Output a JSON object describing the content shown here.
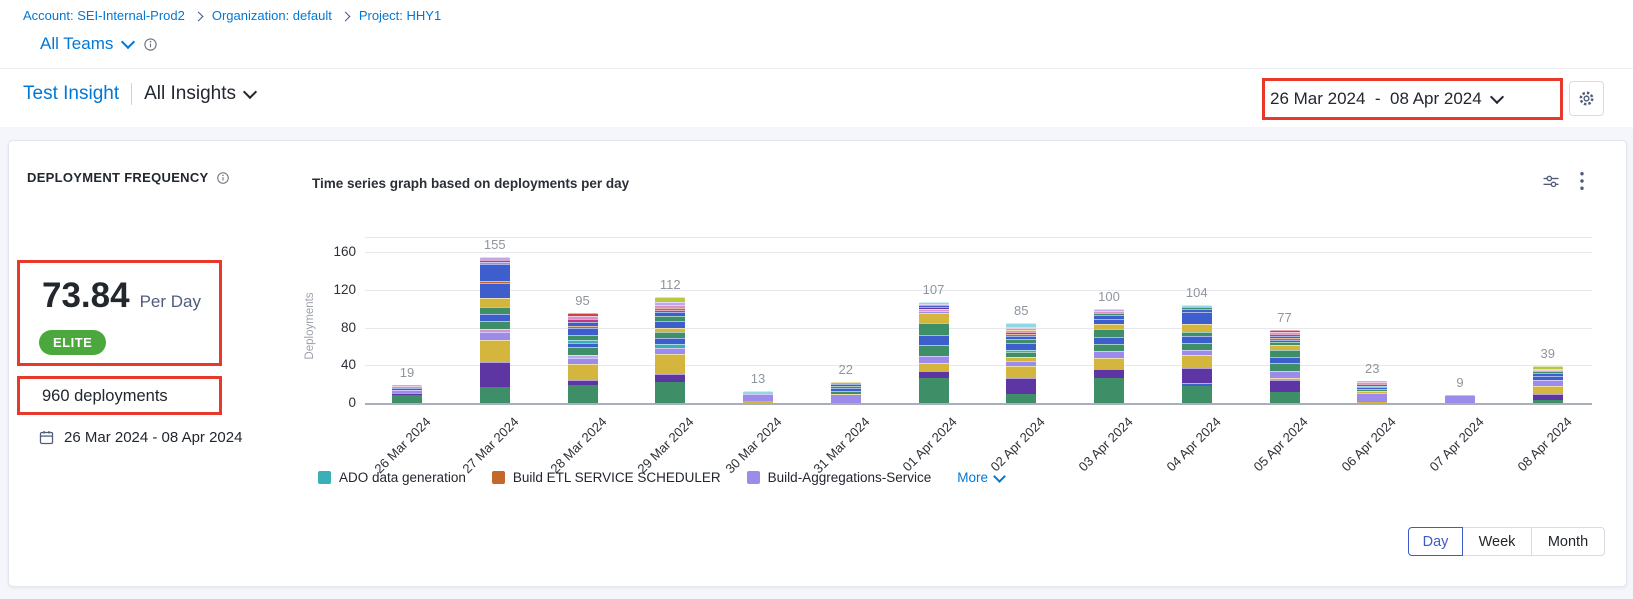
{
  "breadcrumb": {
    "items": [
      "Account: SEI-Internal-Prod2",
      "Organization: default",
      "Project: HHY1"
    ]
  },
  "teams_selector": {
    "label": "All Teams"
  },
  "insight_header": {
    "insight_name": "Test Insight",
    "scope_label": "All Insights"
  },
  "header_date_range": "26 Mar 2024  -  08 Apr 2024",
  "widget": {
    "title": "DEPLOYMENT FREQUENCY",
    "metric_value": "73.84",
    "metric_unit": "Per Day",
    "badge": "ELITE",
    "total_label": "960 deployments",
    "period": "26 Mar 2024 - 08 Apr 2024"
  },
  "colors": {
    "primary_blue": "#0278D5",
    "badge_green": "#4BA83C",
    "annotation_red": "#E8382C",
    "selected_toggle_blue": "#3D5BC9"
  },
  "icons": {
    "settings": "gear-icon",
    "widget_filter": "sliders-icon",
    "widget_menu": "kebab-menu-icon",
    "info": "info-circle-icon",
    "calendar": "calendar-icon"
  },
  "controls": {
    "granularity_options": [
      "Day",
      "Week",
      "Month"
    ],
    "selected_granularity": "Day"
  },
  "chart_data": {
    "type": "bar",
    "stacked": true,
    "title": "Time series graph based on deployments per day",
    "xlabel": "",
    "ylabel": "Deployments",
    "ylim": [
      0,
      176
    ],
    "yticks": [
      0,
      40,
      80,
      120,
      160
    ],
    "grid": true,
    "legend_position": "bottom",
    "categories": [
      "26 Mar 2024",
      "27 Mar 2024",
      "28 Mar 2024",
      "29 Mar 2024",
      "30 Mar 2024",
      "31 Mar 2024",
      "01 Apr 2024",
      "02 Apr 2024",
      "03 Apr 2024",
      "04 Apr 2024",
      "05 Apr 2024",
      "06 Apr 2024",
      "07 Apr 2024",
      "08 Apr 2024"
    ],
    "totals": [
      19,
      155,
      95,
      112,
      13,
      22,
      107,
      85,
      100,
      104,
      77,
      23,
      9,
      39
    ],
    "palette": {
      "green": "#3E8E68",
      "darkpurple": "#5D36A4",
      "gold": "#D4B53E",
      "periwinkle": "#9C8BEA",
      "blue": "#3D5ECC",
      "teal": "#3AAFB5",
      "orange": "#C2682A",
      "crimson": "#C13A7D",
      "pink": "#DA93C9",
      "lavender": "#BEA9E9",
      "lime": "#B8C93F",
      "lightcyan": "#8ED9E4",
      "red": "#CB4442"
    },
    "bars": [
      {
        "category": "26 Mar 2024",
        "total": 19,
        "segments": [
          [
            "green",
            8
          ],
          [
            "darkpurple",
            3
          ],
          [
            "periwinkle",
            3
          ],
          [
            "blue",
            2
          ],
          [
            "pink",
            2
          ],
          [
            "crimson",
            1
          ]
        ]
      },
      {
        "category": "27 Mar 2024",
        "total": 155,
        "segments": [
          [
            "green",
            17
          ],
          [
            "darkpurple",
            26
          ],
          [
            "gold",
            24
          ],
          [
            "periwinkle",
            8
          ],
          [
            "pink",
            3
          ],
          [
            "green",
            9
          ],
          [
            "blue",
            7
          ],
          [
            "green",
            8
          ],
          [
            "gold",
            9
          ],
          [
            "blue",
            16
          ],
          [
            "orange",
            2
          ],
          [
            "blue",
            18
          ],
          [
            "periwinkle",
            2
          ],
          [
            "crimson",
            3
          ],
          [
            "lavender",
            3
          ]
        ]
      },
      {
        "category": "28 Mar 2024",
        "total": 95,
        "segments": [
          [
            "green",
            19
          ],
          [
            "darkpurple",
            5
          ],
          [
            "gold",
            17
          ],
          [
            "periwinkle",
            7
          ],
          [
            "lavender",
            3
          ],
          [
            "green",
            8
          ],
          [
            "blue",
            5
          ],
          [
            "teal",
            3
          ],
          [
            "green",
            5
          ],
          [
            "blue",
            8
          ],
          [
            "orange",
            2
          ],
          [
            "blue",
            4
          ],
          [
            "crimson",
            3
          ],
          [
            "pink",
            3
          ],
          [
            "red",
            3
          ]
        ]
      },
      {
        "category": "29 Mar 2024",
        "total": 112,
        "segments": [
          [
            "green",
            22
          ],
          [
            "darkpurple",
            9
          ],
          [
            "gold",
            21
          ],
          [
            "periwinkle",
            6
          ],
          [
            "teal",
            5
          ],
          [
            "blue",
            6
          ],
          [
            "green",
            6
          ],
          [
            "gold",
            4
          ],
          [
            "blue",
            8
          ],
          [
            "green",
            5
          ],
          [
            "blue",
            4
          ],
          [
            "crimson",
            3
          ],
          [
            "orange",
            2
          ],
          [
            "pink",
            3
          ],
          [
            "lavender",
            3
          ],
          [
            "lime",
            5
          ]
        ]
      },
      {
        "category": "30 Mar 2024",
        "total": 13,
        "segments": [
          [
            "gold",
            2
          ],
          [
            "periwinkle",
            8
          ],
          [
            "lightcyan",
            3
          ]
        ]
      },
      {
        "category": "31 Mar 2024",
        "total": 22,
        "segments": [
          [
            "periwinkle",
            8
          ],
          [
            "gold",
            2
          ],
          [
            "green",
            3
          ],
          [
            "blue",
            3
          ],
          [
            "green",
            2
          ],
          [
            "blue",
            2
          ],
          [
            "gold",
            2
          ]
        ]
      },
      {
        "category": "01 Apr 2024",
        "total": 107,
        "segments": [
          [
            "green",
            26
          ],
          [
            "darkpurple",
            8
          ],
          [
            "gold",
            8
          ],
          [
            "periwinkle",
            8
          ],
          [
            "green",
            12
          ],
          [
            "blue",
            10
          ],
          [
            "green",
            13
          ],
          [
            "gold",
            10
          ],
          [
            "periwinkle",
            3
          ],
          [
            "pink",
            2
          ],
          [
            "darkpurple",
            2
          ],
          [
            "blue",
            2
          ],
          [
            "lavender",
            1
          ],
          [
            "lightcyan",
            2
          ]
        ]
      },
      {
        "category": "02 Apr 2024",
        "total": 85,
        "segments": [
          [
            "green",
            10
          ],
          [
            "darkpurple",
            17
          ],
          [
            "gold",
            12
          ],
          [
            "periwinkle",
            6
          ],
          [
            "gold",
            4
          ],
          [
            "green",
            5
          ],
          [
            "teal",
            2
          ],
          [
            "blue",
            8
          ],
          [
            "green",
            4
          ],
          [
            "blue",
            3
          ],
          [
            "orange",
            2
          ],
          [
            "crimson",
            2
          ],
          [
            "gold",
            2
          ],
          [
            "pink",
            2
          ],
          [
            "lime",
            2
          ],
          [
            "lightcyan",
            4
          ]
        ]
      },
      {
        "category": "03 Apr 2024",
        "total": 100,
        "segments": [
          [
            "green",
            27
          ],
          [
            "darkpurple",
            9
          ],
          [
            "gold",
            12
          ],
          [
            "periwinkle",
            7
          ],
          [
            "green",
            8
          ],
          [
            "blue",
            7
          ],
          [
            "green",
            8
          ],
          [
            "gold",
            6
          ],
          [
            "blue",
            5
          ],
          [
            "blue",
            4
          ],
          [
            "green",
            2
          ],
          [
            "pink",
            2
          ],
          [
            "lavender",
            3
          ]
        ]
      },
      {
        "category": "04 Apr 2024",
        "total": 104,
        "segments": [
          [
            "green",
            18
          ],
          [
            "blue",
            3
          ],
          [
            "darkpurple",
            16
          ],
          [
            "gold",
            14
          ],
          [
            "periwinkle",
            5
          ],
          [
            "green",
            8
          ],
          [
            "blue",
            7
          ],
          [
            "green",
            4
          ],
          [
            "gold",
            9
          ],
          [
            "blue",
            12
          ],
          [
            "blue",
            4
          ],
          [
            "green",
            2
          ],
          [
            "lightcyan",
            2
          ]
        ]
      },
      {
        "category": "05 Apr 2024",
        "total": 77,
        "segments": [
          [
            "green",
            12
          ],
          [
            "darkpurple",
            12
          ],
          [
            "gold",
            3
          ],
          [
            "periwinkle",
            7
          ],
          [
            "green",
            8
          ],
          [
            "blue",
            7
          ],
          [
            "green",
            7
          ],
          [
            "gold",
            6
          ],
          [
            "green",
            3
          ],
          [
            "blue",
            2
          ],
          [
            "orange",
            2
          ],
          [
            "blue",
            2
          ],
          [
            "crimson",
            2
          ],
          [
            "pink",
            2
          ],
          [
            "red",
            2
          ]
        ]
      },
      {
        "category": "06 Apr 2024",
        "total": 23,
        "segments": [
          [
            "gold",
            1
          ],
          [
            "periwinkle",
            10
          ],
          [
            "gold",
            2
          ],
          [
            "green",
            2
          ],
          [
            "blue",
            2
          ],
          [
            "teal",
            1
          ],
          [
            "crimson",
            2
          ],
          [
            "pink",
            2
          ],
          [
            "red",
            1
          ]
        ]
      },
      {
        "category": "07 Apr 2024",
        "total": 9,
        "segments": [
          [
            "periwinkle",
            8
          ],
          [
            "lightcyan",
            1
          ]
        ]
      },
      {
        "category": "08 Apr 2024",
        "total": 39,
        "segments": [
          [
            "green",
            3
          ],
          [
            "darkpurple",
            7
          ],
          [
            "gold",
            8
          ],
          [
            "periwinkle",
            6
          ],
          [
            "blue",
            5
          ],
          [
            "blue",
            3
          ],
          [
            "green",
            2
          ],
          [
            "pink",
            1
          ],
          [
            "lavender",
            1
          ],
          [
            "lime",
            3
          ]
        ]
      }
    ],
    "legend": [
      {
        "label": "ADO data generation",
        "color_key": "teal"
      },
      {
        "label": "Build ETL SERVICE SCHEDULER",
        "color_key": "orange"
      },
      {
        "label": "Build-Aggregations-Service",
        "color_key": "periwinkle"
      }
    ],
    "legend_more_label": "More"
  }
}
